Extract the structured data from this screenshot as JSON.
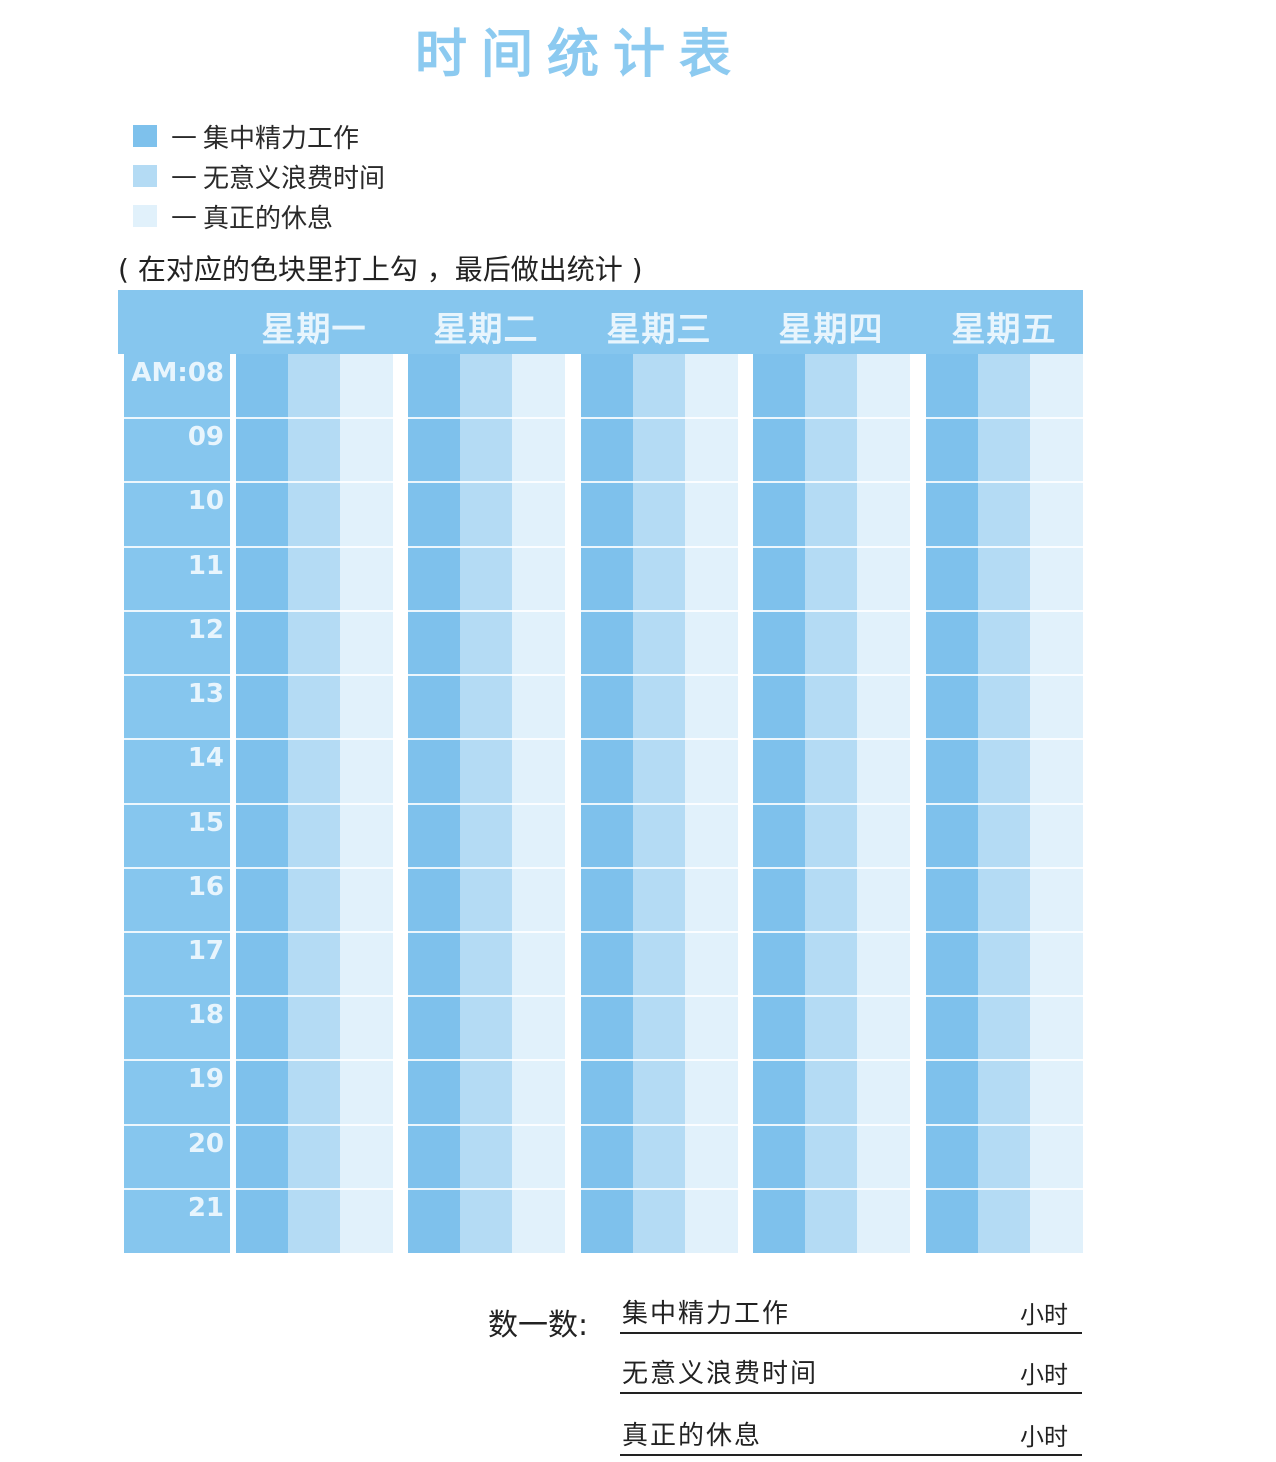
{
  "title": "时间统计表",
  "legend": [
    {
      "dash": "—",
      "label": "集中精力工作",
      "color": "#7ec1ec"
    },
    {
      "dash": "—",
      "label": "无意义浪费时间",
      "color": "#b4dbf4"
    },
    {
      "dash": "—",
      "label": "真正的休息",
      "color": "#e1f1fb"
    }
  ],
  "instruction": "( 在对应的色块里打上勾 ，最后做出统计 )",
  "days": [
    "星期一",
    "星期二",
    "星期三",
    "星期四",
    "星期五"
  ],
  "hours": [
    "AM:08",
    "09",
    "10",
    "11",
    "12",
    "13",
    "14",
    "15",
    "16",
    "17",
    "18",
    "19",
    "20",
    "21"
  ],
  "summary": {
    "label": "数一数:",
    "rows": [
      {
        "label": "集中精力工作",
        "unit": "小时"
      },
      {
        "label": "无意义浪费时间",
        "unit": "小时"
      },
      {
        "label": "真正的休息",
        "unit": "小时"
      }
    ]
  }
}
